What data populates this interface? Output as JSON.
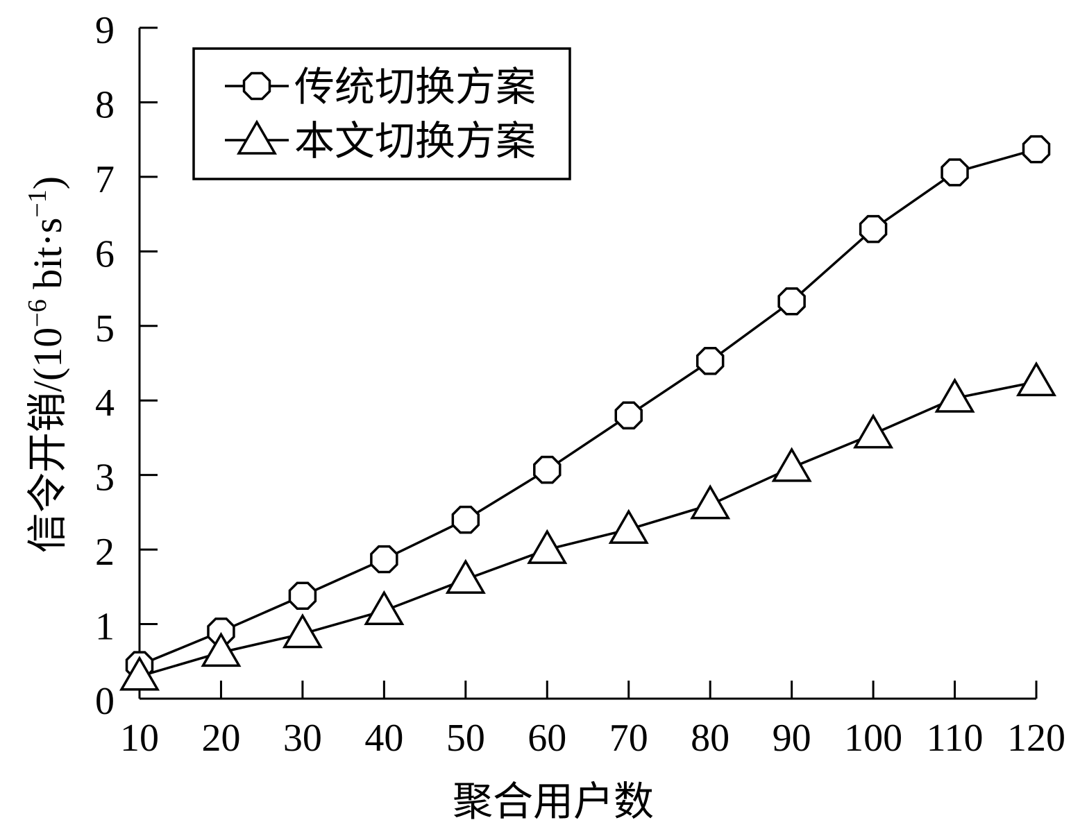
{
  "chart_data": {
    "type": "line",
    "title": "",
    "xlabel": "聚合用户数",
    "ylabel": {
      "prefix": "信令开销/(10",
      "exp1": "−6",
      "middle": " bit·s",
      "exp2": "−1",
      "suffix": ")"
    },
    "x": [
      10,
      20,
      30,
      40,
      50,
      60,
      70,
      80,
      90,
      100,
      110,
      120
    ],
    "xlim": [
      10,
      120
    ],
    "ylim": [
      0,
      9
    ],
    "x_ticks": [
      "10",
      "20",
      "30",
      "40",
      "50",
      "60",
      "70",
      "80",
      "90",
      "100",
      "110",
      "120"
    ],
    "y_ticks": [
      "0",
      "1",
      "2",
      "3",
      "4",
      "5",
      "6",
      "7",
      "8",
      "9"
    ],
    "grid": false,
    "legend_position": "top-left",
    "series": [
      {
        "name": "传统切换方案",
        "marker": "octagon",
        "color": "#000000",
        "values": [
          0.45,
          0.9,
          1.38,
          1.87,
          2.4,
          3.07,
          3.8,
          4.53,
          5.33,
          6.3,
          7.06,
          7.37
        ]
      },
      {
        "name": "本文切换方案",
        "marker": "triangle",
        "color": "#000000",
        "values": [
          0.3,
          0.62,
          0.87,
          1.18,
          1.6,
          2.0,
          2.27,
          2.6,
          3.1,
          3.55,
          4.03,
          4.25
        ]
      }
    ]
  }
}
